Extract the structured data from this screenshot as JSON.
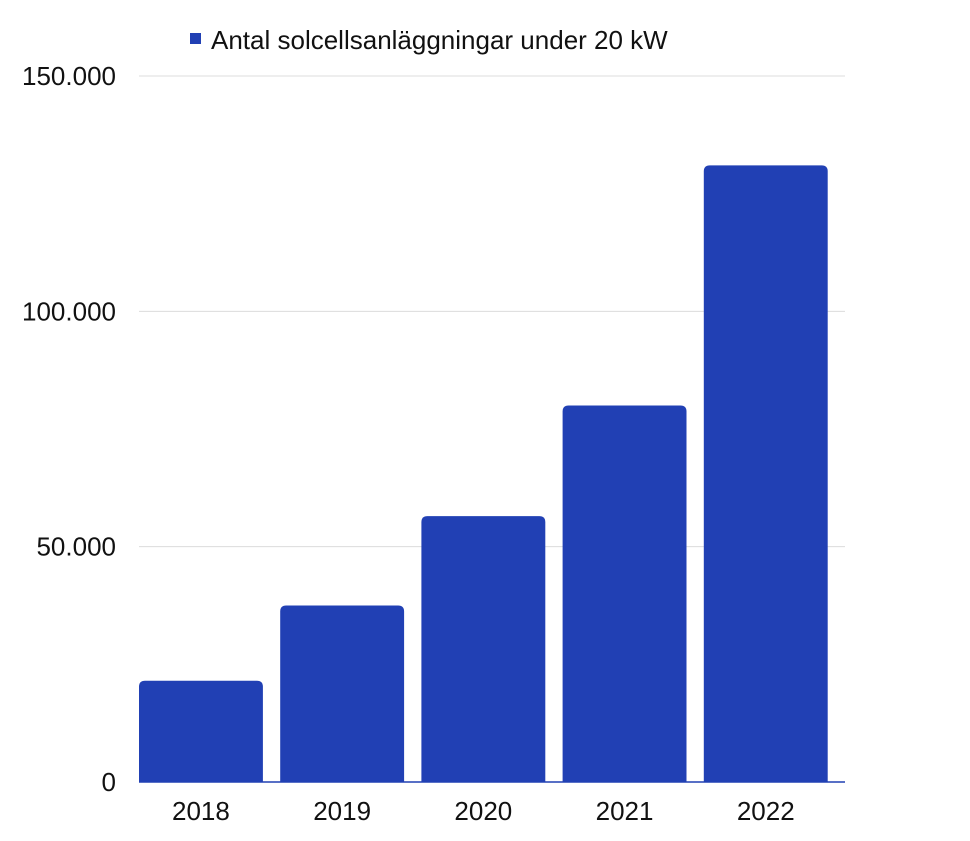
{
  "chart_data": {
    "type": "bar",
    "categories": [
      "2018",
      "2019",
      "2020",
      "2021",
      "2022"
    ],
    "series": [
      {
        "name": "Antal solcellsanläggningar under 20 kW",
        "values": [
          21500,
          37500,
          56500,
          80000,
          131000
        ],
        "color": "#2140b4"
      }
    ],
    "ylim": [
      0,
      150000
    ],
    "yticks": [
      0,
      50000,
      100000,
      150000
    ],
    "ytick_labels": [
      "0",
      "50.000",
      "100.000",
      "150.000"
    ],
    "grid": true,
    "legend_position": "top-center",
    "colors": {
      "grid": "#dcdcdc",
      "axis": "#2140b4",
      "text": "#111111"
    }
  }
}
